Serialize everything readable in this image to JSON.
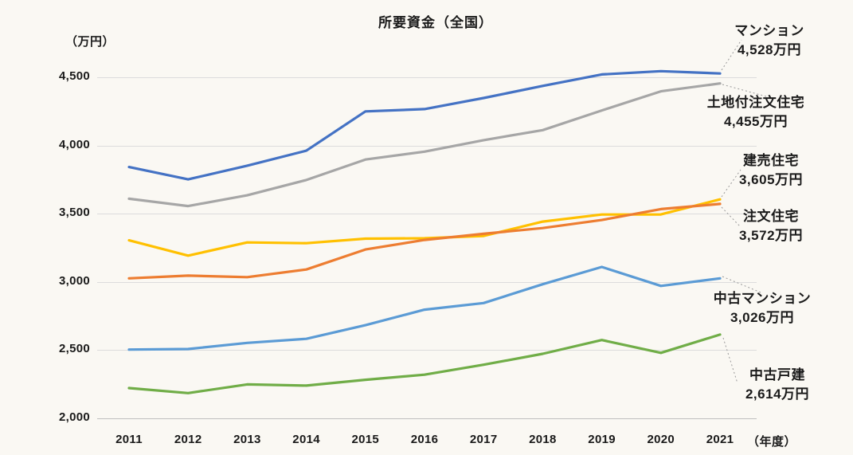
{
  "chart_data": {
    "type": "line",
    "title": "所要資金（全国）",
    "y_unit_label": "（万円）",
    "x_unit_label": "（年度）",
    "x_categories": [
      "2011",
      "2012",
      "2013",
      "2014",
      "2015",
      "2016",
      "2017",
      "2018",
      "2019",
      "2020",
      "2021"
    ],
    "ylim": [
      2000,
      4500
    ],
    "y_ticks": [
      {
        "value": 4500,
        "label": "4,500"
      },
      {
        "value": 4000,
        "label": "4,000"
      },
      {
        "value": 3500,
        "label": "3,500"
      },
      {
        "value": 3000,
        "label": "3,000"
      },
      {
        "value": 2500,
        "label": "2,500"
      },
      {
        "value": 2000,
        "label": "2,000"
      }
    ],
    "grid": "horizontal-only",
    "legend_position": "right-edge-callouts",
    "series": [
      {
        "name": "マンション",
        "latest_value_label": "4,528万円",
        "color": "#4472c4",
        "values": [
          3842,
          3752,
          3852,
          3962,
          4250,
          4267,
          4348,
          4437,
          4521,
          4545,
          4528
        ]
      },
      {
        "name": "土地付注文住宅",
        "latest_value_label": "4,455万円",
        "color": "#a6a6a6",
        "values": [
          3610,
          3556,
          3635,
          3747,
          3897,
          3955,
          4039,
          4113,
          4257,
          4397,
          4455
        ]
      },
      {
        "name": "建売住宅",
        "latest_value_label": "3,605万円",
        "color": "#ffc000",
        "values": [
          3305,
          3193,
          3290,
          3284,
          3317,
          3320,
          3337,
          3442,
          3494,
          3495,
          3605
        ]
      },
      {
        "name": "注文住宅",
        "latest_value_label": "3,572万円",
        "color": "#ed7d31",
        "values": [
          3026,
          3046,
          3035,
          3091,
          3238,
          3308,
          3353,
          3395,
          3454,
          3534,
          3572
        ]
      },
      {
        "name": "中古マンション",
        "latest_value_label": "3,026万円",
        "color": "#5b9bd5",
        "values": [
          2504,
          2508,
          2553,
          2583,
          2683,
          2797,
          2845,
          2983,
          3110,
          2971,
          3026
        ]
      },
      {
        "name": "中古戸建",
        "latest_value_label": "2,614万円",
        "color": "#70ad47",
        "values": [
          2222,
          2185,
          2249,
          2240,
          2283,
          2320,
          2393,
          2473,
          2574,
          2480,
          2614
        ]
      }
    ]
  }
}
